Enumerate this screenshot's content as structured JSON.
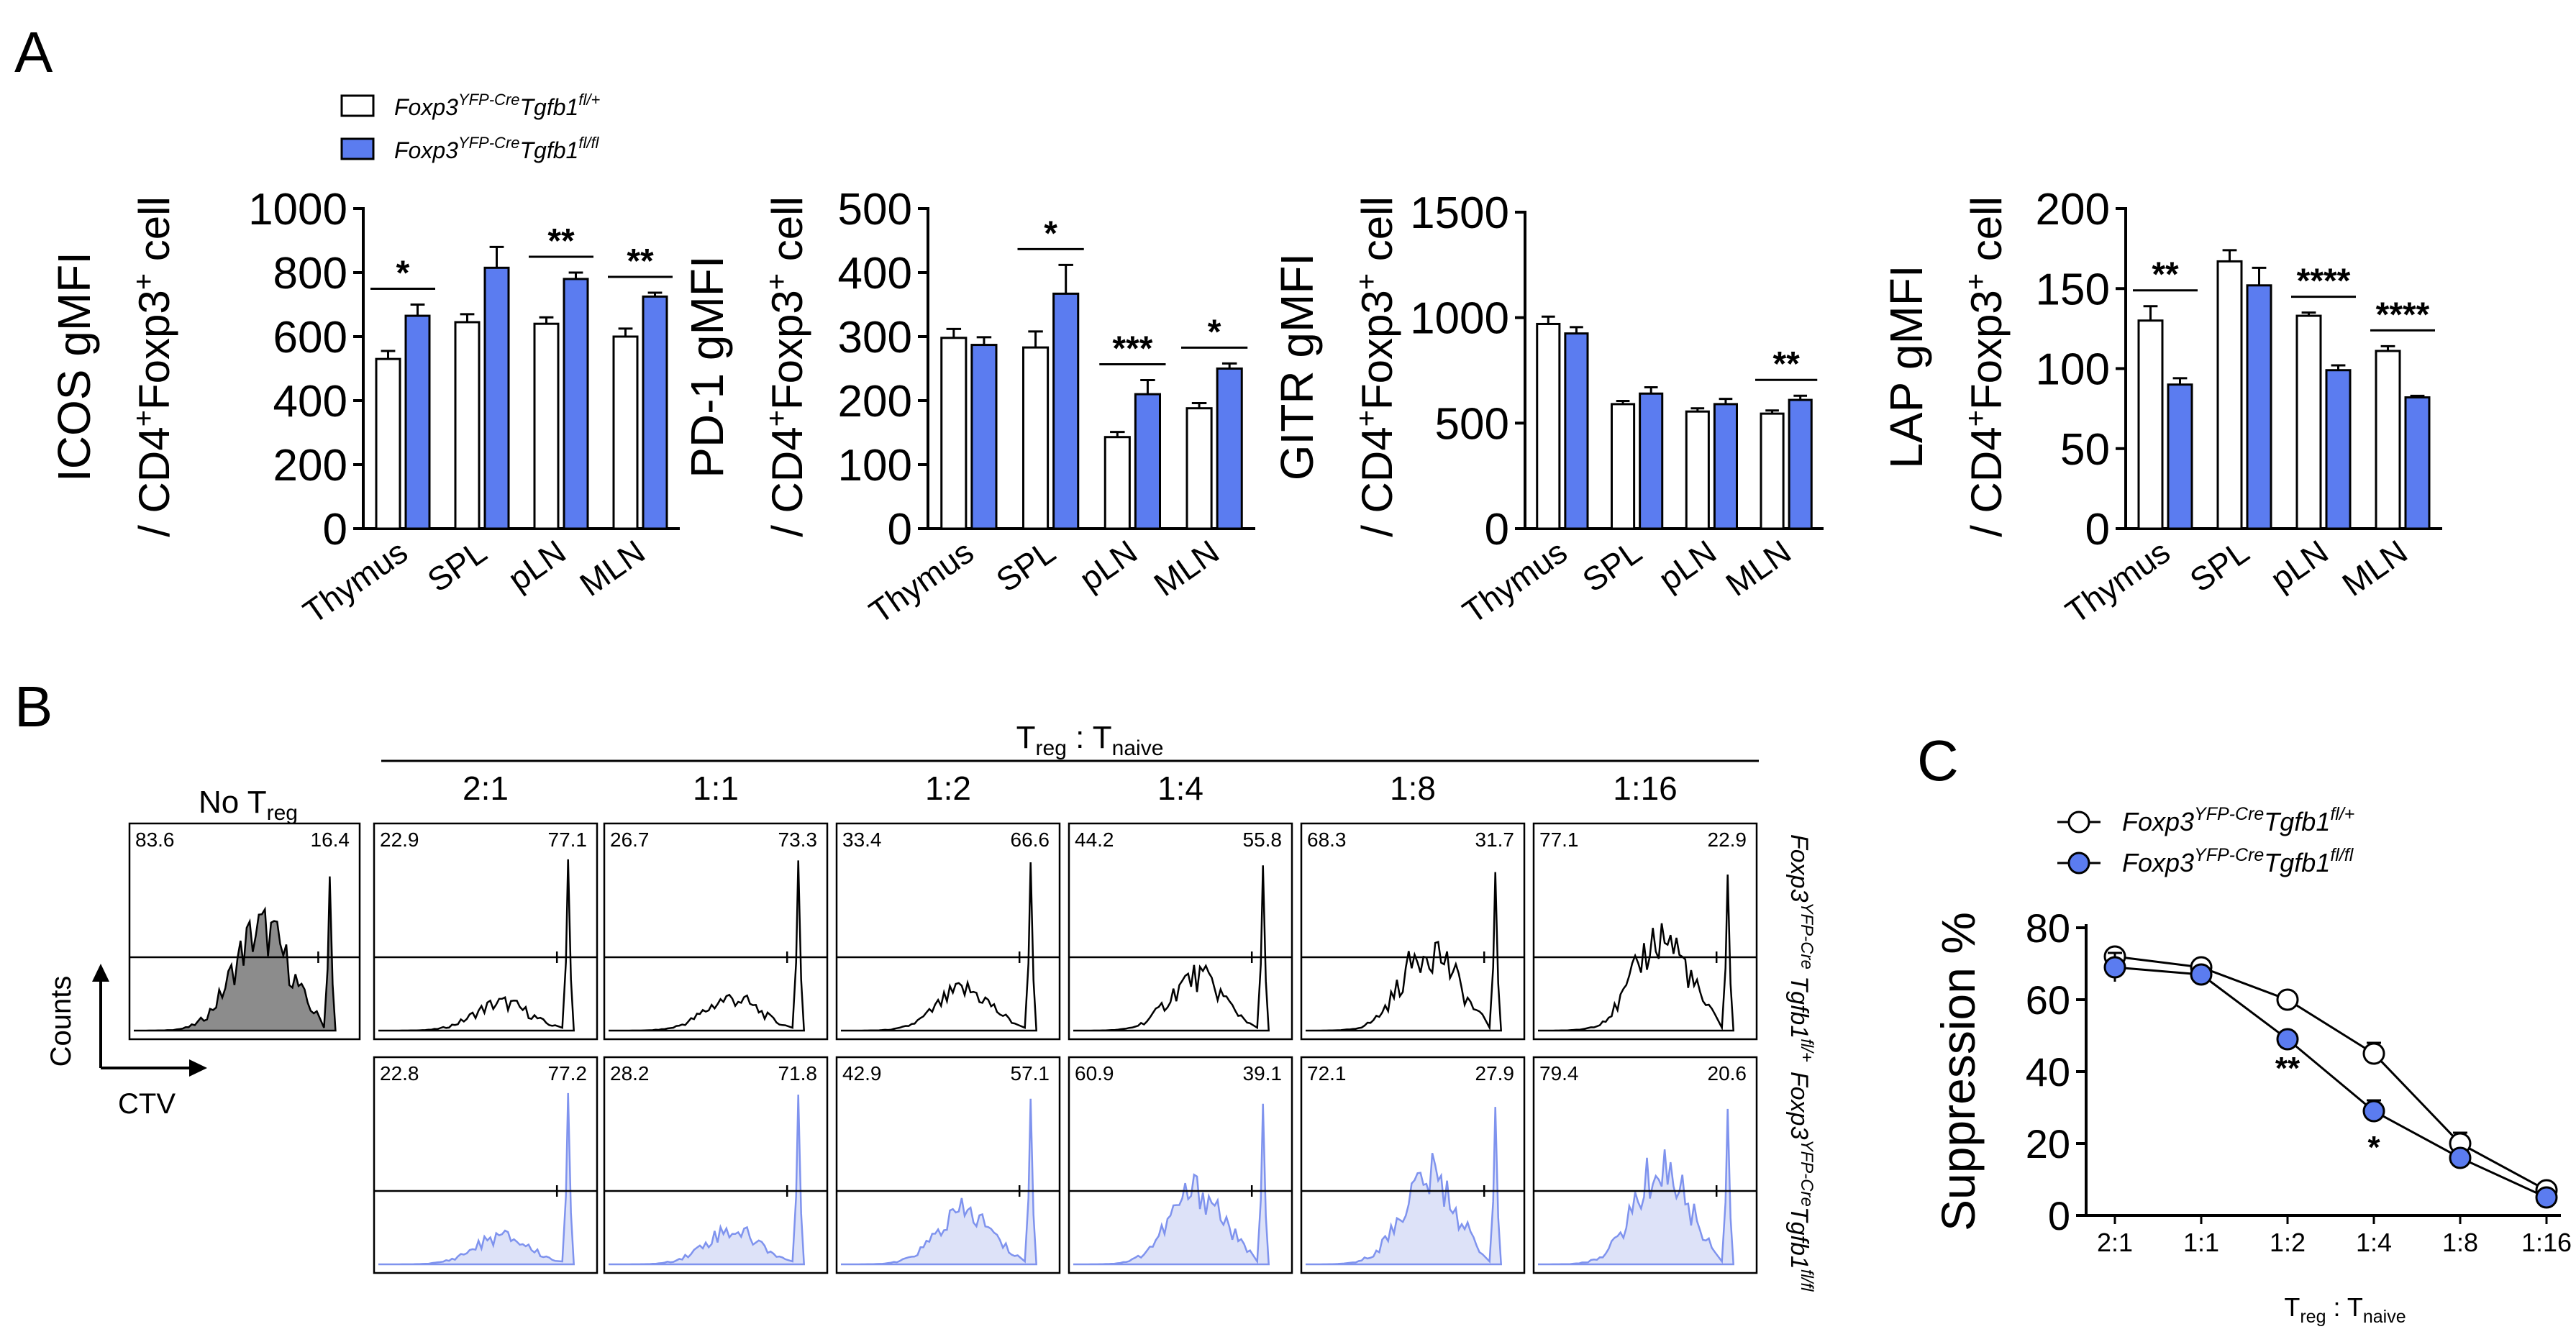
{
  "panel_labels": {
    "a": "A",
    "b": "B",
    "c": "C"
  },
  "colors": {
    "ctrl_fill": "#ffffff",
    "ko_fill": "#5b7cf0",
    "ko_hist": "#dde2f8",
    "ko_line": "#7f93ee",
    "notreg_fill": "#8c8c8c"
  },
  "legend_a": {
    "ctrl": {
      "base": "Foxp3",
      "sup": "YFP-Cre",
      "gene": "Tgfb1",
      "gsup": "fl/+"
    },
    "ko": {
      "base": "Foxp3",
      "sup": "YFP-Cre",
      "gene": "Tgfb1",
      "gsup": "fl/fl"
    }
  },
  "chart_data": [
    {
      "type": "bar",
      "id": "icos",
      "ylabel_marker": "ICOS gMFI",
      "ylabel_cells": "/ CD4+Foxp3+ cell",
      "categories": [
        "Thymus",
        "SPL",
        "pLN",
        "MLN"
      ],
      "ylim": [
        0,
        1000
      ],
      "yticks": [
        0,
        200,
        400,
        600,
        800,
        1000
      ],
      "series": [
        {
          "name": "Foxp3YFP-Cre Tgfb1fl/+",
          "values": [
            530,
            645,
            640,
            600
          ],
          "errors": [
            25,
            25,
            20,
            25
          ]
        },
        {
          "name": "Foxp3YFP-Cre Tgfb1fl/fl",
          "values": [
            665,
            815,
            780,
            725
          ],
          "errors": [
            35,
            65,
            20,
            12
          ]
        }
      ],
      "significance": [
        {
          "category": "Thymus",
          "label": "*"
        },
        {
          "category": "pLN",
          "label": "**"
        },
        {
          "category": "MLN",
          "label": "**"
        }
      ]
    },
    {
      "type": "bar",
      "id": "pd1",
      "ylabel_marker": "PD-1 gMFI",
      "ylabel_cells": "/ CD4+Foxp3+ cell",
      "categories": [
        "Thymus",
        "SPL",
        "pLN",
        "MLN"
      ],
      "ylim": [
        0,
        500
      ],
      "yticks": [
        0,
        100,
        200,
        300,
        400,
        500
      ],
      "series": [
        {
          "name": "Foxp3YFP-Cre Tgfb1fl/+",
          "values": [
            298,
            283,
            143,
            188
          ],
          "errors": [
            14,
            25,
            8,
            8
          ]
        },
        {
          "name": "Foxp3YFP-Cre Tgfb1fl/fl",
          "values": [
            287,
            367,
            210,
            250
          ],
          "errors": [
            12,
            45,
            22,
            8
          ]
        }
      ],
      "significance": [
        {
          "category": "SPL",
          "label": "*"
        },
        {
          "category": "pLN",
          "label": "***"
        },
        {
          "category": "MLN",
          "label": "*"
        }
      ]
    },
    {
      "type": "bar",
      "id": "gitr",
      "ylabel_marker": "GITR gMFI",
      "ylabel_cells": "/ CD4+Foxp3+ cell",
      "categories": [
        "Thymus",
        "SPL",
        "pLN",
        "MLN"
      ],
      "ylim": [
        0,
        1500
      ],
      "yticks": [
        0,
        500,
        1000,
        1500
      ],
      "series": [
        {
          "name": "Foxp3YFP-Cre Tgfb1fl/+",
          "values": [
            970,
            590,
            555,
            545
          ],
          "errors": [
            35,
            15,
            15,
            15
          ]
        },
        {
          "name": "Foxp3YFP-Cre Tgfb1fl/fl",
          "values": [
            925,
            640,
            590,
            610
          ],
          "errors": [
            30,
            30,
            25,
            20
          ]
        }
      ],
      "significance": [
        {
          "category": "MLN",
          "label": "**"
        }
      ]
    },
    {
      "type": "bar",
      "id": "lap",
      "ylabel_marker": "LAP gMFI",
      "ylabel_cells": "/ CD4+Foxp3+ cell",
      "categories": [
        "Thymus",
        "SPL",
        "pLN",
        "MLN"
      ],
      "ylim": [
        0,
        200
      ],
      "yticks": [
        0,
        50,
        100,
        150,
        200
      ],
      "series": [
        {
          "name": "Foxp3YFP-Cre Tgfb1fl/+",
          "values": [
            130,
            167,
            133,
            111
          ],
          "errors": [
            9,
            7,
            2,
            3
          ]
        },
        {
          "name": "Foxp3YFP-Cre Tgfb1fl/fl",
          "values": [
            90,
            152,
            99,
            82
          ],
          "errors": [
            4,
            11,
            3,
            1
          ]
        }
      ],
      "significance": [
        {
          "category": "Thymus",
          "label": "**"
        },
        {
          "category": "pLN",
          "label": "****"
        },
        {
          "category": "MLN",
          "label": "****"
        }
      ]
    },
    {
      "type": "line",
      "id": "suppression",
      "title": "",
      "xlabel": "Treg : Tnaive",
      "ylabel": "Suppression %",
      "categories": [
        "2:1",
        "1:1",
        "1:2",
        "1:4",
        "1:8",
        "1:16"
      ],
      "ylim": [
        0,
        80
      ],
      "yticks": [
        0,
        20,
        40,
        60,
        80
      ],
      "legend": "top-left",
      "series": [
        {
          "name": "Foxp3YFP-Cre Tgfb1fl/+",
          "marker": "open-circle",
          "values": [
            72,
            69,
            60,
            45,
            20,
            7
          ],
          "errors": [
            2,
            1,
            1,
            3,
            3,
            2
          ]
        },
        {
          "name": "Foxp3YFP-Cre Tgfb1fl/fl",
          "marker": "filled-circle",
          "values": [
            69,
            67,
            49,
            29,
            16,
            5
          ],
          "errors": [
            4,
            1,
            1,
            3,
            2,
            2
          ]
        }
      ],
      "significance": [
        {
          "category": "1:2",
          "label": "**"
        },
        {
          "category": "1:4",
          "label": "*"
        }
      ]
    }
  ],
  "panel_b": {
    "header": {
      "base": "T",
      "sub": "reg",
      "sep": " : ",
      "base2": "T",
      "sub2": "naive"
    },
    "no_treg": {
      "title": "No T",
      "sub": "reg",
      "left_pct": "83.6",
      "right_pct": "16.4"
    },
    "axis_y": "Counts",
    "axis_x": "CTV",
    "ratios": [
      "2:1",
      "1:1",
      "1:2",
      "1:4",
      "1:8",
      "1:16"
    ],
    "ctrl_row": {
      "label": {
        "base": "Foxp3",
        "sup": "YFP-Cre",
        "gene": "Tgfb1",
        "gsup": "fl/+"
      },
      "left_pct": [
        "22.9",
        "26.7",
        "33.4",
        "44.2",
        "68.3",
        "77.1"
      ],
      "right_pct": [
        "77.1",
        "73.3",
        "66.6",
        "55.8",
        "31.7",
        "22.9"
      ]
    },
    "ko_row": {
      "label": {
        "base": "Foxp3",
        "sup": "YFP-Cre",
        "gene": "Tgfb1",
        "gsup": "fl/fl"
      },
      "left_pct": [
        "22.8",
        "28.2",
        "42.9",
        "60.9",
        "72.1",
        "79.4"
      ],
      "right_pct": [
        "77.2",
        "71.8",
        "57.1",
        "39.1",
        "27.9",
        "20.6"
      ]
    }
  },
  "legend_c": {
    "ctrl": {
      "base": "Foxp3",
      "sup": "YFP-Cre",
      "gene": "Tgfb1",
      "gsup": "fl/+"
    },
    "ko": {
      "base": "Foxp3",
      "sup": "YFP-Cre",
      "gene": "Tgfb1",
      "gsup": "fl/fl"
    }
  },
  "axis_c": {
    "xbase": "T",
    "xsub": "reg",
    "xsep": " : ",
    "xbase2": "T",
    "xsub2": "naive"
  }
}
